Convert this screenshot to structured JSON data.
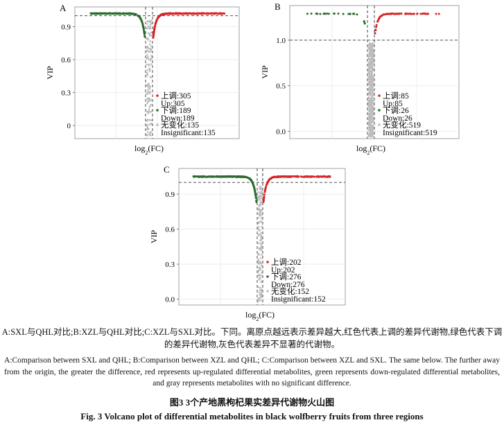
{
  "colors": {
    "up": "#d62728",
    "down": "#2e6b30",
    "insig": "#bdbdbd",
    "frame": "#8a8a8a",
    "grid": "#e8e8e8"
  },
  "chart_data": [
    {
      "type": "scatter",
      "letter": "A",
      "xlabel": "log2(FC)",
      "ylabel": "VIP",
      "yticks": [
        "0.9",
        "0.6",
        "0.3",
        "0"
      ],
      "ytick_values": [
        0.9,
        0.6,
        0.3,
        0
      ],
      "ylim": [
        -0.12,
        1.08
      ],
      "vip_threshold": 1.0,
      "legend": [
        {
          "kind": "up",
          "zh": "上调:305",
          "en": "Up:305"
        },
        {
          "kind": "down",
          "zh": "下调:189",
          "en": "Down:189"
        },
        {
          "kind": "insig",
          "zh": "无变化:135",
          "en": "Insignificant:135"
        }
      ],
      "counts": {
        "up": 305,
        "down": 189,
        "insig": 135
      }
    },
    {
      "type": "scatter",
      "letter": "B",
      "xlabel": "log2(FC)",
      "ylabel": "VIP",
      "yticks": [
        "1.0",
        "0.5",
        "0.0"
      ],
      "ytick_values": [
        1.0,
        0.5,
        0.0
      ],
      "ylim": [
        -0.08,
        1.38
      ],
      "vip_threshold": 1.0,
      "legend": [
        {
          "kind": "up",
          "zh": "上调:85",
          "en": "Up:85"
        },
        {
          "kind": "down",
          "zh": "下调:26",
          "en": "Down:26"
        },
        {
          "kind": "insig",
          "zh": "无变化:519",
          "en": "Insignificant:519"
        }
      ],
      "counts": {
        "up": 85,
        "down": 26,
        "insig": 519
      }
    },
    {
      "type": "scatter",
      "letter": "C",
      "xlabel": "log2(FC)",
      "ylabel": "VIP",
      "yticks": [
        "0.9",
        "0.6",
        "0.3",
        "0.0"
      ],
      "ytick_values": [
        0.9,
        0.6,
        0.3,
        0.0
      ],
      "ylim": [
        -0.05,
        1.12
      ],
      "vip_threshold": 1.0,
      "legend": [
        {
          "kind": "up",
          "zh": "上调:202",
          "en": "Up:202"
        },
        {
          "kind": "down",
          "zh": "下调:276",
          "en": "Down:276"
        },
        {
          "kind": "insig",
          "zh": "无变化:152",
          "en": "Insignificant:152"
        }
      ],
      "counts": {
        "up": 202,
        "down": 276,
        "insig": 152
      }
    }
  ],
  "caption": {
    "zh": "A:SXL与QHL对比;B:XZL与QHL对比;C:XZL与SXL对比。下同。离原点越远表示差异越大,红色代表上调的差异代谢物,绿色代表下调的差异代谢物,灰色代表差异不显著的代谢物。",
    "en": "A:Comparison between SXL and QHL; B:Comparison between XZL and QHL; C:Comparison between XZL and SXL. The same below. The further away from the origin, the greater the difference, red represents up-regulated differential metabolites, green represents down-regulated differential metabolites, and gray represents metabolites with no significant difference.",
    "fig_zh": "图3 3个产地黑枸杞果实差异代谢物火山图",
    "fig_en": "Fig. 3 Volcano plot of differential metabolites in black wolfberry fruits from three regions"
  }
}
